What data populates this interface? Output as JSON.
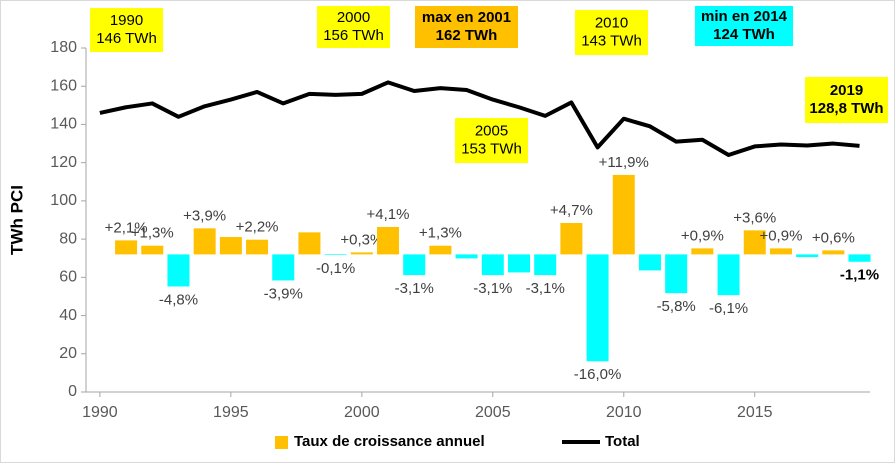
{
  "chart_data": {
    "type": "bar",
    "ylabel": "TWh PCI",
    "xlim": [
      1989.47,
      2019.4
    ],
    "xticks": [
      1990,
      1995,
      2000,
      2005,
      2010,
      2015
    ],
    "ylim": [
      0,
      180
    ],
    "yticks": [
      0,
      20,
      40,
      60,
      80,
      100,
      120,
      140,
      160,
      180
    ],
    "y2lim": [
      -20.6,
      30.9
    ],
    "grid": false,
    "legend": "bottom",
    "series": [
      {
        "name": "Taux de croissance annuel",
        "type": "bar",
        "axis": "y2",
        "color": "#ffc000",
        "negative_color": "#00ffff",
        "x": [
          1991,
          1992,
          1993,
          1994,
          1995,
          1996,
          1997,
          1998,
          1999,
          2000,
          2001,
          2002,
          2003,
          2004,
          2005,
          2006,
          2007,
          2008,
          2009,
          2010,
          2011,
          2012,
          2013,
          2014,
          2015,
          2016,
          2017,
          2018,
          2019
        ],
        "values": [
          2.1,
          1.3,
          -4.8,
          3.9,
          2.6,
          2.2,
          -3.9,
          3.3,
          -0.1,
          0.3,
          4.1,
          -3.1,
          1.3,
          -0.6,
          -3.1,
          -2.7,
          -3.1,
          4.7,
          -16.0,
          11.9,
          -2.4,
          -5.8,
          0.9,
          -6.1,
          3.6,
          0.9,
          -0.4,
          0.6,
          -1.1
        ],
        "value_labels": [
          "+2,1%",
          "+1,3%",
          "-4,8%",
          "+3,9%",
          null,
          "+2,2%",
          "-3,9%",
          null,
          "-0,1%",
          "+0,3%",
          "+4,1%",
          "-3,1%",
          "+1,3%",
          null,
          "-3,1%",
          null,
          "-3,1%",
          "+4,7%",
          "-16,0%",
          "+11,9%",
          null,
          "-5,8%",
          "+0,9%",
          "-6,1%",
          "+3,6%",
          "+0,9%",
          null,
          "+0,6%",
          "-1,1%"
        ]
      },
      {
        "name": "Total",
        "type": "line",
        "color": "#000000",
        "x": [
          1990,
          1991,
          1992,
          1993,
          1994,
          1995,
          1996,
          1997,
          1998,
          1999,
          2000,
          2001,
          2002,
          2003,
          2004,
          2005,
          2006,
          2007,
          2008,
          2009,
          2010,
          2011,
          2012,
          2013,
          2014,
          2015,
          2016,
          2017,
          2018,
          2019
        ],
        "values": [
          146,
          149,
          151,
          144,
          149.5,
          153,
          157,
          151,
          156,
          155.5,
          156,
          162,
          157.5,
          159,
          158,
          153,
          149,
          144.5,
          151.5,
          128,
          143,
          139,
          131,
          132,
          124,
          128.5,
          129.5,
          129,
          130,
          128.8
        ]
      }
    ],
    "annotations": [
      {
        "lines": [
          "1990",
          "146 TWh"
        ],
        "color": "#ffff00",
        "bold": false
      },
      {
        "lines": [
          "2000",
          "156 TWh"
        ],
        "color": "#ffff00",
        "bold": false
      },
      {
        "lines": [
          "max en 2001",
          "162 TWh"
        ],
        "color": "#ffc000",
        "bold": true
      },
      {
        "lines": [
          "2010",
          "143 TWh"
        ],
        "color": "#ffff00",
        "bold": false
      },
      {
        "lines": [
          "min en 2014",
          "124 TWh"
        ],
        "color": "#00ffff",
        "bold": true
      },
      {
        "lines": [
          "2019",
          "128,8 TWh"
        ],
        "color": "#ffff00",
        "bold": true
      },
      {
        "lines": [
          "2005",
          "153 TWh"
        ],
        "color": "#ffff00",
        "bold": false
      }
    ]
  }
}
